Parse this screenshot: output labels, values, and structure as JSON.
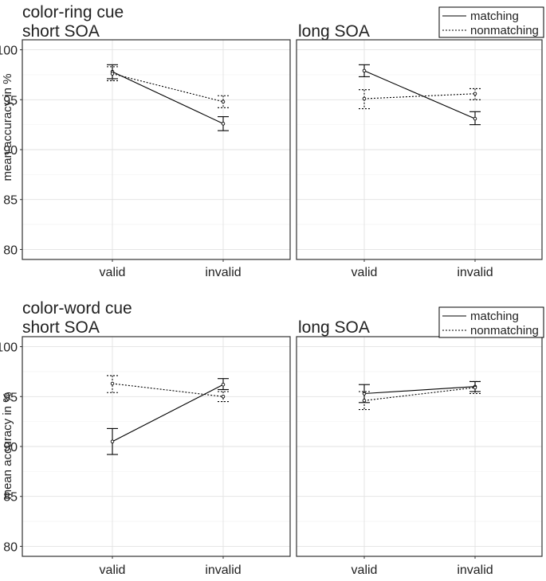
{
  "chart_data": [
    {
      "type": "line",
      "title": "color-ring cue",
      "subtitle": "short SOA",
      "ylabel": "mean accuracy in %",
      "categories": [
        "valid",
        "invalid"
      ],
      "yticks": [
        "80",
        "85",
        "90",
        "95",
        "100"
      ],
      "ylim": [
        79,
        101
      ],
      "grid": true,
      "series": [
        {
          "name": "matching",
          "style": "solid",
          "values": [
            97.8,
            92.6
          ],
          "lower": [
            97.1,
            91.9
          ],
          "upper": [
            98.5,
            93.3
          ]
        },
        {
          "name": "nonmatching",
          "style": "dotted",
          "values": [
            97.6,
            94.8
          ],
          "lower": [
            96.9,
            94.2
          ],
          "upper": [
            98.3,
            95.4
          ]
        }
      ]
    },
    {
      "type": "line",
      "title": "long SOA",
      "categories": [
        "valid",
        "invalid"
      ],
      "yticks": [],
      "ylim": [
        79,
        101
      ],
      "grid": true,
      "legend": {
        "position": "top-right",
        "entries": [
          "matching",
          "nonmatching"
        ]
      },
      "series": [
        {
          "name": "matching",
          "style": "solid",
          "values": [
            97.9,
            93.1
          ],
          "lower": [
            97.3,
            92.5
          ],
          "upper": [
            98.5,
            93.8
          ]
        },
        {
          "name": "nonmatching",
          "style": "dotted",
          "values": [
            95.1,
            95.6
          ],
          "lower": [
            94.1,
            95.0
          ],
          "upper": [
            96.0,
            96.1
          ]
        }
      ]
    },
    {
      "type": "line",
      "title": "color-word cue",
      "subtitle": "short SOA",
      "ylabel": "mean accuracy in %",
      "categories": [
        "valid",
        "invalid"
      ],
      "yticks": [
        "80",
        "85",
        "90",
        "95",
        "100"
      ],
      "ylim": [
        79,
        101
      ],
      "grid": true,
      "series": [
        {
          "name": "matching",
          "style": "solid",
          "values": [
            90.5,
            96.2
          ],
          "lower": [
            89.2,
            95.7
          ],
          "upper": [
            91.8,
            96.8
          ]
        },
        {
          "name": "nonmatching",
          "style": "dotted",
          "values": [
            96.3,
            95.0
          ],
          "lower": [
            95.4,
            94.5
          ],
          "upper": [
            97.1,
            95.5
          ]
        }
      ]
    },
    {
      "type": "line",
      "title": "long SOA",
      "categories": [
        "valid",
        "invalid"
      ],
      "yticks": [],
      "ylim": [
        79,
        101
      ],
      "grid": true,
      "legend": {
        "position": "top-right",
        "entries": [
          "matching",
          "nonmatching"
        ]
      },
      "series": [
        {
          "name": "matching",
          "style": "solid",
          "values": [
            95.3,
            96.0
          ],
          "lower": [
            94.4,
            95.5
          ],
          "upper": [
            96.2,
            96.5
          ]
        },
        {
          "name": "nonmatching",
          "style": "dotted",
          "values": [
            94.6,
            95.9
          ],
          "lower": [
            93.7,
            95.3
          ],
          "upper": [
            95.5,
            96.5
          ]
        }
      ]
    }
  ]
}
